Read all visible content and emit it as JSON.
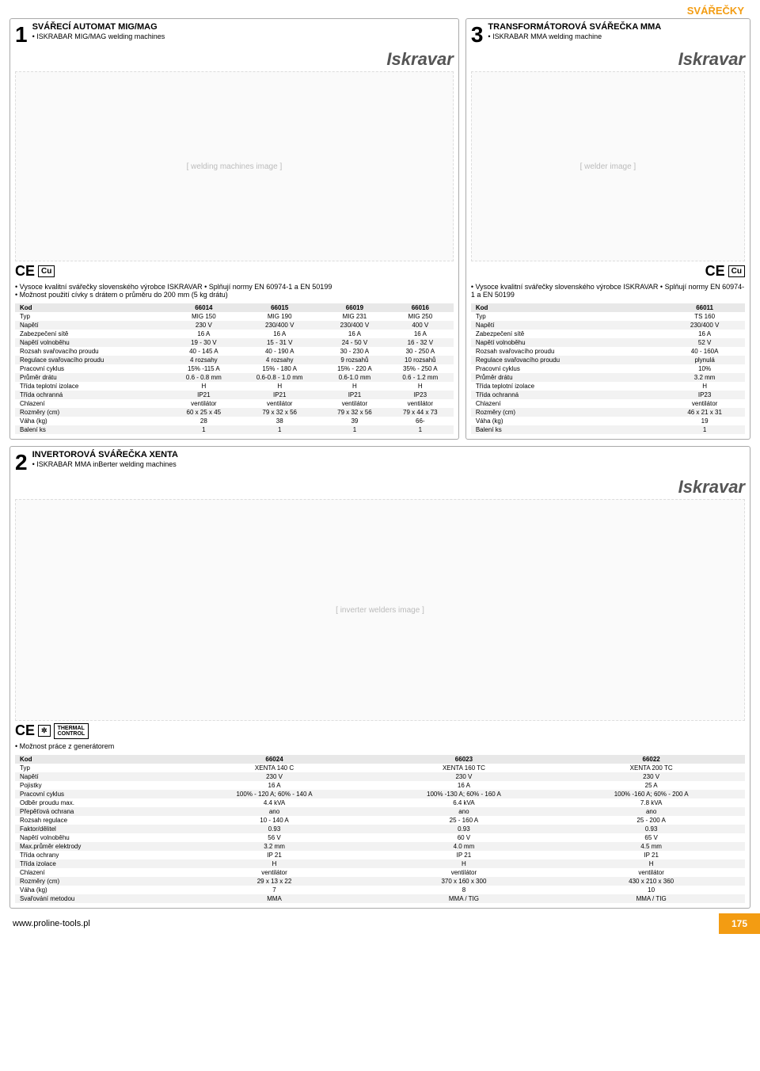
{
  "category": "SVÁŘEČKY",
  "footer": {
    "url": "www.proline-tools.pl",
    "page": "175"
  },
  "p1": {
    "num": "1",
    "title": "SVÁŘECÍ AUTOMAT MIG/MAG",
    "sub": "ISKRABAR MIG/MAG welding machines",
    "brand": "Iskravar",
    "bullets": [
      "Vysoce kvalitní svářečky slovenského výrobce ISKRAVAR • Splňují normy EN 60974-1 a EN 50199",
      "Možnost použití cívky s drátem o průměru do 200 mm (5 kg drátu)"
    ],
    "cols": [
      "Kod",
      "66014",
      "66015",
      "66019",
      "66016"
    ],
    "rows": [
      [
        "Typ",
        "MIG 150",
        "MIG 190",
        "MIG 231",
        "MIG 250"
      ],
      [
        "Napětí",
        "230 V",
        "230/400 V",
        "230/400 V",
        "400 V"
      ],
      [
        "Zabezpečení sítě",
        "16 A",
        "16 A",
        "16 A",
        "16 A"
      ],
      [
        "Napětí volnoběhu",
        "19 - 30 V",
        "15 - 31 V",
        "24 - 50 V",
        "16 - 32 V"
      ],
      [
        "Rozsah svařovacího proudu",
        "40 - 145 A",
        "40 - 190 A",
        "30 - 230 A",
        "30 - 250 A"
      ],
      [
        "Regulace svařovacího proudu",
        "4 rozsahy",
        "4 rozsahy",
        "9 rozsahů",
        "10 rozsahů"
      ],
      [
        "Pracovní cyklus",
        "15% -115 A",
        "15% - 180 A",
        "15% - 220 A",
        "35% - 250 A"
      ],
      [
        "Průměr drátu",
        "0.6 - 0.8 mm",
        "0.6-0.8 - 1.0 mm",
        "0.6-1.0 mm",
        "0.6 - 1.2 mm"
      ],
      [
        "Třída teplotní izolace",
        "H",
        "H",
        "H",
        "H"
      ],
      [
        "Třída ochranná",
        "IP21",
        "IP21",
        "IP21",
        "IP23"
      ],
      [
        "Chlazení",
        "ventilátor",
        "ventilátor",
        "ventilátor",
        "ventilátor"
      ],
      [
        "Rozměry (cm)",
        "60 x 25 x 45",
        "79 x 32 x 56",
        "79 x 32 x 56",
        "79 x 44 x 73"
      ],
      [
        "Váha (kg)",
        "28",
        "38",
        "39",
        "66-"
      ],
      [
        "Balení ks",
        "1",
        "1",
        "1",
        "1"
      ]
    ]
  },
  "p3": {
    "num": "3",
    "title": "TRANSFORMÁTOROVÁ SVÁŘEČKA MMA",
    "sub": "ISKRABAR MMA welding machine",
    "brand": "Iskravar",
    "bullets": [
      "Vysoce kvalitní svářečky slovenského výrobce ISKRAVAR • Splňují normy EN 60974-1 a EN 50199"
    ],
    "cols": [
      "Kod",
      "66011"
    ],
    "rows": [
      [
        "Typ",
        "TS 160"
      ],
      [
        "Napětí",
        "230/400 V"
      ],
      [
        "Zabezpečení sítě",
        "16 A"
      ],
      [
        "Napětí volnoběhu",
        "52 V"
      ],
      [
        "Rozsah svařovacího proudu",
        "40 - 160A"
      ],
      [
        "Regulace svařovacího proudu",
        "plynulá"
      ],
      [
        "Pracovní cyklus",
        "10%"
      ],
      [
        "Průměr drátu",
        "3.2 mm"
      ],
      [
        "Třída teplotní izolace",
        "H"
      ],
      [
        "Třída ochranná",
        "IP23"
      ],
      [
        "Chlazení",
        "ventilátor"
      ],
      [
        "Rozměry (cm)",
        "46 x 21 x 31"
      ],
      [
        "Váha (kg)",
        "19"
      ],
      [
        "Balení ks",
        "1"
      ]
    ]
  },
  "p2": {
    "num": "2",
    "title": "INVERTOROVÁ SVÁŘEČKA XENTA",
    "sub": "ISKRABAR MMA inBerter welding machines",
    "brand": "Iskravar",
    "bullets": [
      "Možnost práce z generátorem"
    ],
    "cols": [
      "Kod",
      "66024",
      "66023",
      "66022"
    ],
    "rows": [
      [
        "Typ",
        "XENTA 140 C",
        "XENTA 160 TC",
        "XENTA 200 TC"
      ],
      [
        "Napětí",
        "230 V",
        "230 V",
        "230 V"
      ],
      [
        "Pojistky",
        "16 A",
        "16 A",
        "25 A"
      ],
      [
        "Pracovní cyklus",
        "100% - 120 A; 60% - 140 A",
        "100% -130 A; 60% - 160 A",
        "100% -160 A; 60% - 200 A"
      ],
      [
        "Odběr proudu max.",
        "4.4 kVA",
        "6.4 kVA",
        "7.8 kVA"
      ],
      [
        "Přepěťová ochrana",
        "ano",
        "ano",
        "ano"
      ],
      [
        "Rozsah regulace",
        "10 - 140 A",
        "25 - 160 A",
        "25 - 200 A"
      ],
      [
        "Faktor/dělitel",
        "0.93",
        "0.93",
        "0.93"
      ],
      [
        "Napětí  volnoběhu",
        "56 V",
        "60 V",
        "65 V"
      ],
      [
        "Max.průměr elektrody",
        "3.2 mm",
        "4.0 mm",
        "4.5 mm"
      ],
      [
        "Třída ochrany",
        "IP 21",
        "IP 21",
        "IP 21"
      ],
      [
        "Třída izolace",
        "H",
        "H",
        "H"
      ],
      [
        "Chlazení",
        "ventilátor",
        "ventilátor",
        "ventilátor"
      ],
      [
        "Rozměry (cm)",
        "29 x 13 x 22",
        "370 x 160 x 300",
        "430 x 210 x 360"
      ],
      [
        "Váha (kg)",
        "7",
        "8",
        "10"
      ],
      [
        "Svařování metodou",
        "MMA",
        "MMA / TIG",
        "MMA / TIG"
      ]
    ]
  }
}
